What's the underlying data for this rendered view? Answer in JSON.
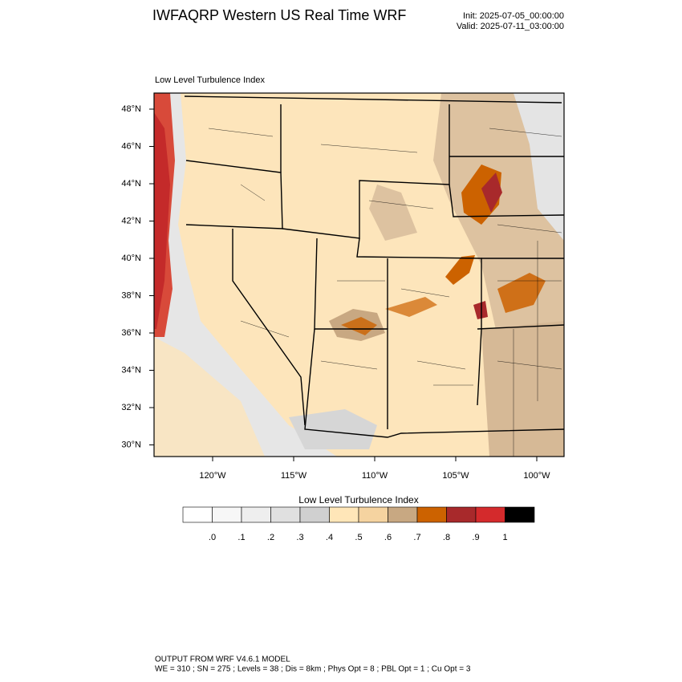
{
  "header": {
    "title": "IWFAQRP Western US Real Time WRF",
    "init": "Init: 2025-07-05_00:00:00",
    "valid": "Valid: 2025-07-11_03:00:00"
  },
  "map": {
    "subtitle": "Low Level Turbulence Index",
    "lat_labels": [
      "48°N",
      "46°N",
      "44°N",
      "42°N",
      "40°N",
      "38°N",
      "36°N",
      "34°N",
      "32°N",
      "30°N"
    ],
    "lon_labels": [
      "120°W",
      "115°W",
      "110°W",
      "105°W",
      "100°W"
    ]
  },
  "colorbar": {
    "title": "Low Level Turbulence Index",
    "labels": [
      ".0",
      ".1",
      ".2",
      ".3",
      ".4",
      ".5",
      ".6",
      ".7",
      ".8",
      ".9",
      "1"
    ],
    "colors": [
      "#ffffff",
      "#f7f7f7",
      "#eeeeee",
      "#e0e0e0",
      "#d0d0d0",
      "#ffe6b8",
      "#f5d3a0",
      "#c8a882",
      "#cc6200",
      "#a8292b",
      "#d42a2c",
      "#000000"
    ]
  },
  "footer": {
    "line1": "OUTPUT FROM WRF V4.6.1 MODEL",
    "line2": "WE = 310 ; SN = 275 ; Levels = 38 ; Dis = 8km ; Phys Opt = 8 ; PBL Opt = 1 ; Cu Opt = 3"
  }
}
